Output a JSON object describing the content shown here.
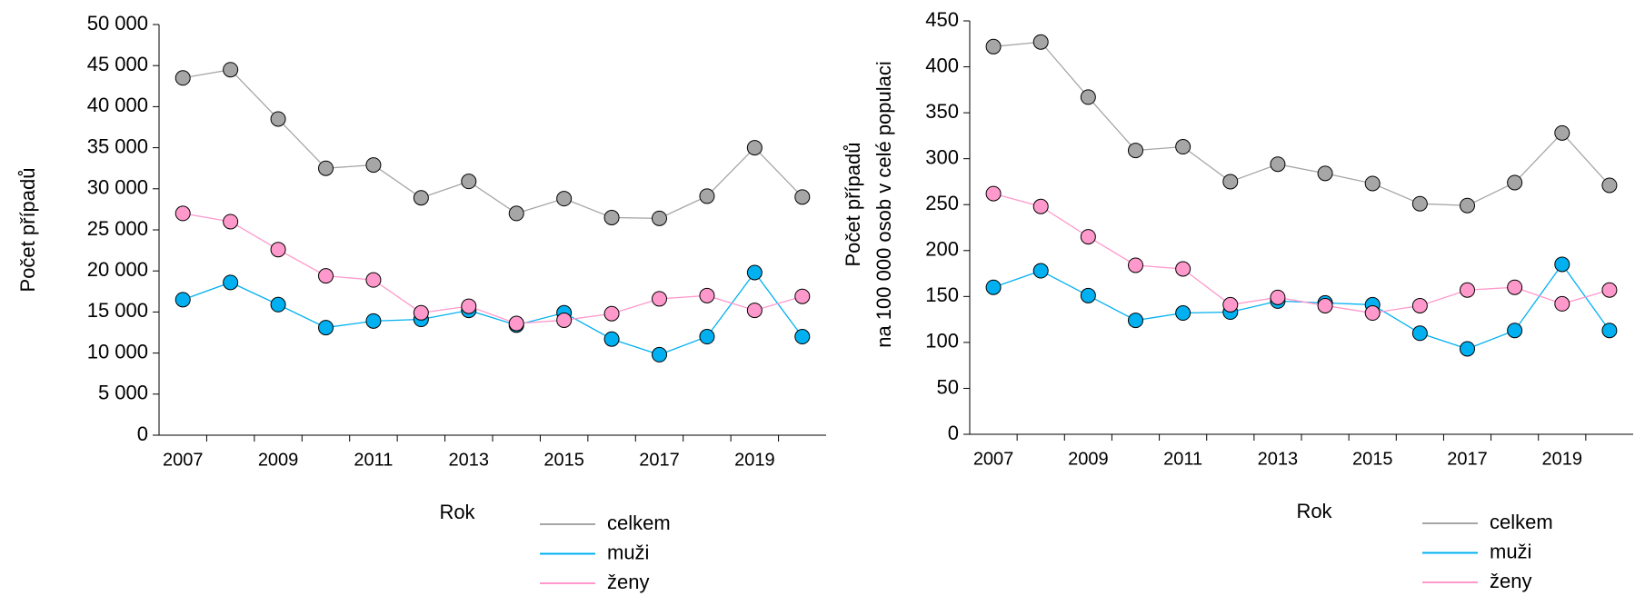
{
  "chart_data": [
    {
      "type": "line",
      "xlabel": "Rok",
      "ylabel": [
        "Počet případů"
      ],
      "x": [
        2007,
        2008,
        2009,
        2010,
        2011,
        2012,
        2013,
        2014,
        2015,
        2016,
        2017,
        2018,
        2019,
        2020
      ],
      "xlim": [
        2006.5,
        2020.5
      ],
      "xticks": [
        2007,
        2009,
        2011,
        2013,
        2015,
        2017,
        2019
      ],
      "ylim": [
        0,
        50000
      ],
      "yticks": [
        0,
        {
          "value": 5000,
          "label": "5 000"
        },
        {
          "value": 10000,
          "label": "10 000"
        },
        {
          "value": 15000,
          "label": "15 000"
        },
        {
          "value": 20000,
          "label": "20 000"
        },
        {
          "value": 25000,
          "label": "25 000"
        },
        {
          "value": 30000,
          "label": "30 000"
        },
        {
          "value": 35000,
          "label": "35 000"
        },
        {
          "value": 40000,
          "label": "40 000"
        },
        {
          "value": 45000,
          "label": "45 000"
        },
        {
          "value": 50000,
          "label": "50 000"
        }
      ],
      "series": [
        {
          "name": "celkem",
          "color": "#a6a6a6",
          "values": [
            43500,
            44500,
            38500,
            32500,
            32900,
            28900,
            30900,
            27000,
            28800,
            26500,
            26400,
            29100,
            35000,
            29000
          ]
        },
        {
          "name": "muži",
          "color": "#00b0f0",
          "values": [
            16500,
            18600,
            15900,
            13100,
            13900,
            14100,
            15200,
            13400,
            14900,
            11700,
            9800,
            12000,
            19800,
            12000
          ]
        },
        {
          "name": "ženy",
          "color": "#ff99cc",
          "values": [
            27000,
            26000,
            22600,
            19400,
            18900,
            14900,
            15700,
            13600,
            14000,
            14800,
            16600,
            17000,
            15200,
            16900
          ]
        }
      ]
    },
    {
      "type": "line",
      "xlabel": "Rok",
      "ylabel": [
        "Počet případů",
        "na 100 000 osob v celé populaci"
      ],
      "x": [
        2007,
        2008,
        2009,
        2010,
        2011,
        2012,
        2013,
        2014,
        2015,
        2016,
        2017,
        2018,
        2019,
        2020
      ],
      "xlim": [
        2006.5,
        2020.5
      ],
      "xticks": [
        2007,
        2009,
        2011,
        2013,
        2015,
        2017,
        2019
      ],
      "ylim": [
        0,
        450
      ],
      "yticks": [
        0,
        50,
        100,
        150,
        200,
        250,
        300,
        350,
        400,
        450
      ],
      "series": [
        {
          "name": "celkem",
          "color": "#a6a6a6",
          "values": [
            422,
            427,
            367,
            309,
            313,
            275,
            294,
            284,
            273,
            251,
            249,
            274,
            328,
            271
          ]
        },
        {
          "name": "muži",
          "color": "#00b0f0",
          "values": [
            160,
            178,
            151,
            124,
            132,
            133,
            145,
            143,
            141,
            110,
            93,
            113,
            185,
            113
          ]
        },
        {
          "name": "ženy",
          "color": "#ff99cc",
          "values": [
            262,
            248,
            215,
            184,
            180,
            141,
            149,
            140,
            132,
            140,
            157,
            160,
            142,
            157
          ]
        }
      ]
    }
  ]
}
